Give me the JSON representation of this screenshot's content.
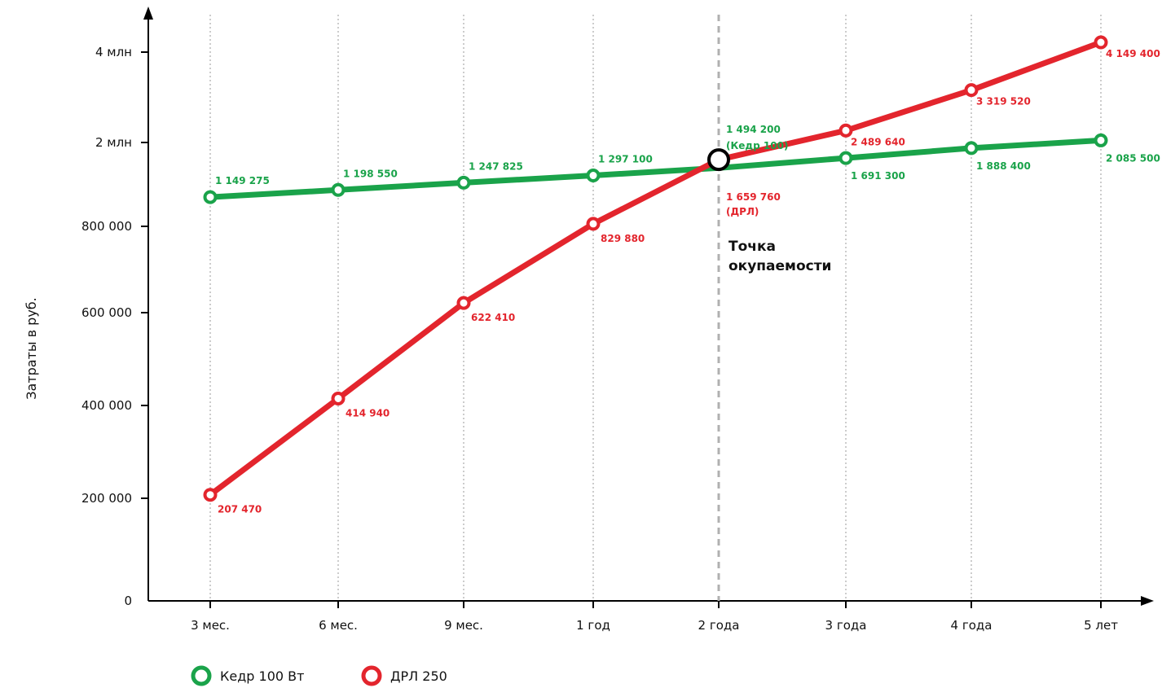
{
  "chart_data": {
    "type": "line",
    "title": "",
    "ylabel": "Затраты в руб.",
    "xlabel": "",
    "categories": [
      "3 мес.",
      "6 мес.",
      "9 мес.",
      "1 год",
      "2 года",
      "3 года",
      "4 года",
      "5 лет"
    ],
    "y_ticks": [
      {
        "value": 0,
        "label": "0"
      },
      {
        "value": 200000,
        "label": "200 000"
      },
      {
        "value": 400000,
        "label": "400 000"
      },
      {
        "value": 600000,
        "label": "600 000"
      },
      {
        "value": 800000,
        "label": "800 000"
      },
      {
        "value": 2000000,
        "label": "2 млн"
      },
      {
        "value": 4000000,
        "label": "4 млн"
      }
    ],
    "y_scale": "broken",
    "grid": "vertical dotted",
    "legend_position": "bottom-left",
    "series": [
      {
        "name": "Кедр 100 Вт",
        "color": "#1aa34a",
        "values": [
          1149275,
          1198550,
          1247825,
          1297100,
          1494200,
          1691300,
          1888400,
          2085500
        ],
        "labels": [
          "1 149 275",
          "1 198 550",
          "1 247 825",
          "1 297 100",
          "1 494 200",
          "1 691 300",
          "1 888 400",
          "2 085 500"
        ]
      },
      {
        "name": "ДРЛ 250",
        "color": "#e3252d",
        "values": [
          207470,
          414940,
          622410,
          829880,
          1659760,
          2489640,
          3319520,
          4149400
        ],
        "labels": [
          "207 470",
          "414 940",
          "622 410",
          "829 880",
          "1 659 760",
          "2 489 640",
          "3 319 520",
          "4 149 400"
        ]
      }
    ],
    "annotations": {
      "breakeven_category": "2 года",
      "breakeven_label_lines": [
        "Точка",
        "окупаемости"
      ],
      "green_at_breakeven_suffix": "(Кедр 100)",
      "red_at_breakeven_suffix": "(ДРЛ)"
    }
  }
}
